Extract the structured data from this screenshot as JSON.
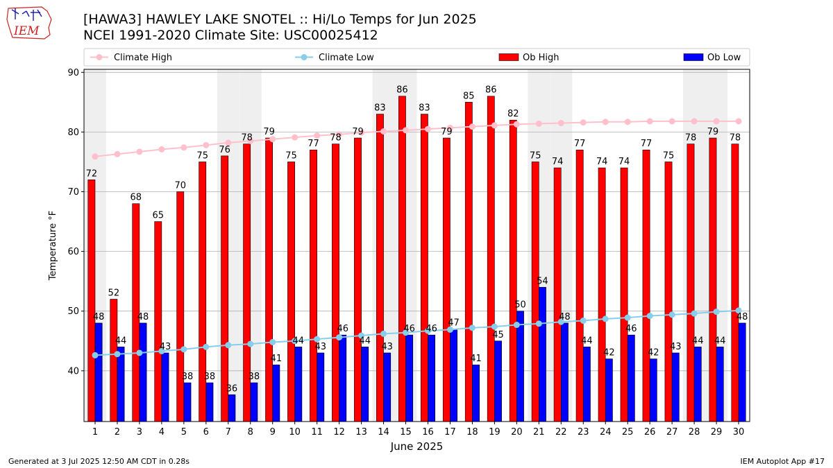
{
  "header": {
    "logo_text": "IEM",
    "title_line1": "[HAWA3] HAWLEY LAKE SNOTEL :: Hi/Lo Temps for Jun 2025",
    "title_line2": "NCEI 1991-2020 Climate Site: USC00025412"
  },
  "footer": {
    "left": "Generated at 3 Jul 2025 12:50 AM CDT in 0.28s",
    "right": "IEM Autoplot App #17"
  },
  "colors": {
    "ob_high": "#ff0000",
    "ob_low": "#0000ff",
    "climate_high": "#ffc0cb",
    "climate_low": "#87ceeb",
    "weekend_shade": "#efefef",
    "grid": "#b0b0b0"
  },
  "chart_data": {
    "type": "bar",
    "xlabel": "June 2025",
    "ylabel": "Temperature °F",
    "ylim": [
      31.5,
      90.5
    ],
    "yticks": [
      40,
      50,
      60,
      70,
      80,
      90
    ],
    "grid": "horizontal",
    "legend_placement": "top",
    "categories": [
      "1",
      "2",
      "3",
      "4",
      "5",
      "6",
      "7",
      "8",
      "9",
      "10",
      "11",
      "12",
      "13",
      "14",
      "15",
      "16",
      "17",
      "18",
      "19",
      "20",
      "21",
      "22",
      "23",
      "24",
      "25",
      "26",
      "27",
      "28",
      "29",
      "30"
    ],
    "shaded_days": [
      1,
      7,
      8,
      14,
      15,
      21,
      22,
      28,
      29
    ],
    "legend": [
      {
        "label": "Climate High",
        "kind": "line",
        "color": "#ffc0cb"
      },
      {
        "label": "Climate Low",
        "kind": "line",
        "color": "#87ceeb"
      },
      {
        "label": "Ob High",
        "kind": "bar",
        "color": "#ff0000"
      },
      {
        "label": "Ob Low",
        "kind": "bar",
        "color": "#0000ff"
      }
    ],
    "series": [
      {
        "name": "Ob High",
        "kind": "bar",
        "values": [
          72,
          52,
          68,
          65,
          70,
          75,
          76,
          78,
          79,
          75,
          77,
          78,
          79,
          83,
          86,
          83,
          79,
          85,
          86,
          82,
          75,
          74,
          77,
          74,
          74,
          77,
          75,
          78,
          79,
          78
        ],
        "labels": [
          "72",
          "52",
          "68",
          "65",
          "70",
          "75",
          "76",
          "78",
          "79",
          "75",
          "77",
          "78",
          "79",
          "83",
          "86",
          "83",
          "79",
          "85",
          "86",
          "82",
          "75",
          "74",
          "77",
          "74",
          "74",
          "77",
          "75",
          "78",
          "79",
          "78"
        ]
      },
      {
        "name": "Ob Low",
        "kind": "bar",
        "values": [
          48,
          44,
          48,
          43,
          38,
          38,
          36,
          38,
          41,
          44,
          43,
          46,
          44,
          43,
          46,
          46,
          47,
          41,
          45,
          50,
          54,
          48,
          44,
          42,
          46,
          42,
          43,
          44,
          44,
          48
        ],
        "labels": [
          "48",
          "44",
          "48",
          "43",
          "38",
          "38",
          "36",
          "38",
          "41",
          "44",
          "43",
          "46",
          "44",
          "43",
          "46",
          "46",
          "47",
          "41",
          "45",
          "50",
          "54",
          "48",
          "44",
          "42",
          "46",
          "42",
          "43",
          "44",
          "44",
          "48"
        ]
      },
      {
        "name": "Climate High",
        "kind": "line",
        "values": [
          75.9,
          76.3,
          76.7,
          77.1,
          77.4,
          77.8,
          78.2,
          78.5,
          78.8,
          79.1,
          79.4,
          79.6,
          79.9,
          80.1,
          80.3,
          80.5,
          80.7,
          80.9,
          81.1,
          81.3,
          81.4,
          81.5,
          81.6,
          81.7,
          81.7,
          81.8,
          81.8,
          81.8,
          81.8,
          81.8
        ]
      },
      {
        "name": "Climate Low",
        "kind": "line",
        "values": [
          42.6,
          42.8,
          43.0,
          43.3,
          43.6,
          44.0,
          44.3,
          44.5,
          44.8,
          45.0,
          45.3,
          45.6,
          45.9,
          46.2,
          46.4,
          46.7,
          46.9,
          47.2,
          47.4,
          47.7,
          47.9,
          48.2,
          48.4,
          48.7,
          48.9,
          49.2,
          49.4,
          49.6,
          49.9,
          50.1
        ]
      }
    ]
  }
}
